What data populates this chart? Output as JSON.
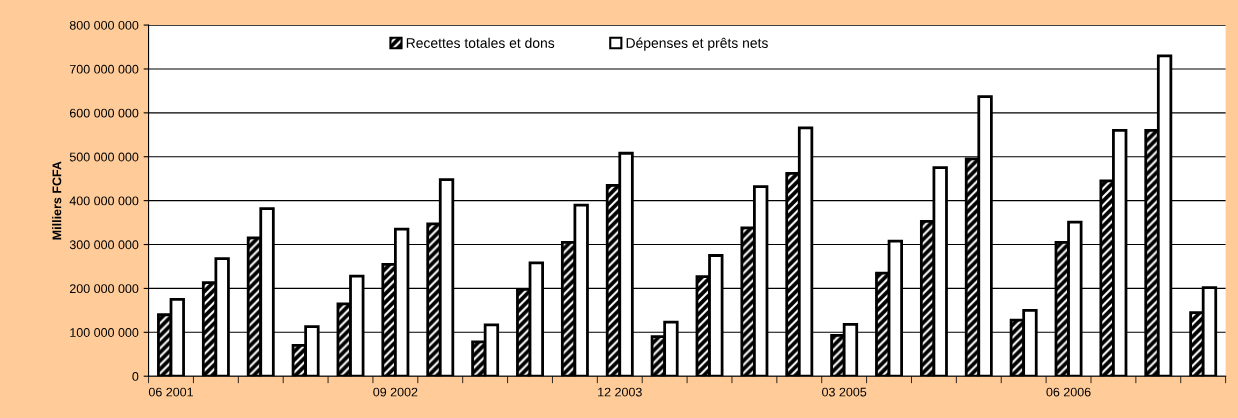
{
  "chart_data": {
    "type": "bar",
    "ylabel": "Milliers FCFA",
    "categories": [
      "06 2001",
      null,
      null,
      null,
      null,
      "09 2002",
      null,
      null,
      null,
      null,
      "12 2003",
      null,
      null,
      null,
      null,
      "03 2005",
      null,
      null,
      null,
      null,
      "06 2006",
      null,
      null,
      null
    ],
    "series": [
      {
        "name": "Recettes totales et dons",
        "color": "#000000",
        "values": [
          140000000,
          213000000,
          315000000,
          70000000,
          165000000,
          255000000,
          347000000,
          78000000,
          198000000,
          305000000,
          435000000,
          90000000,
          227000000,
          338000000,
          462000000,
          93000000,
          235000000,
          353000000,
          495000000,
          128000000,
          305000000,
          445000000,
          560000000,
          145000000
        ]
      },
      {
        "name": "Dépenses et prêts nets",
        "color": "#ffffff",
        "values": [
          175000000,
          268000000,
          382000000,
          113000000,
          228000000,
          335000000,
          448000000,
          117000000,
          258000000,
          390000000,
          508000000,
          123000000,
          275000000,
          432000000,
          566000000,
          118000000,
          308000000,
          475000000,
          637000000,
          150000000,
          351000000,
          560000000,
          730000000,
          202000000
        ]
      }
    ],
    "ylim": [
      0,
      800000000
    ],
    "yticks": [
      {
        "value": 0,
        "label": "0"
      },
      {
        "value": 100000000,
        "label": "100 000 000"
      },
      {
        "value": 200000000,
        "label": "200 000 000"
      },
      {
        "value": 300000000,
        "label": "300 000 000"
      },
      {
        "value": 400000000,
        "label": "400 000 000"
      },
      {
        "value": 500000000,
        "label": "500 000 000"
      },
      {
        "value": 600000000,
        "label": "600 000 000"
      },
      {
        "value": 700000000,
        "label": "700 000 000"
      },
      {
        "value": 800000000,
        "label": "800 000 000"
      }
    ],
    "grid": "y",
    "legend": "top"
  }
}
